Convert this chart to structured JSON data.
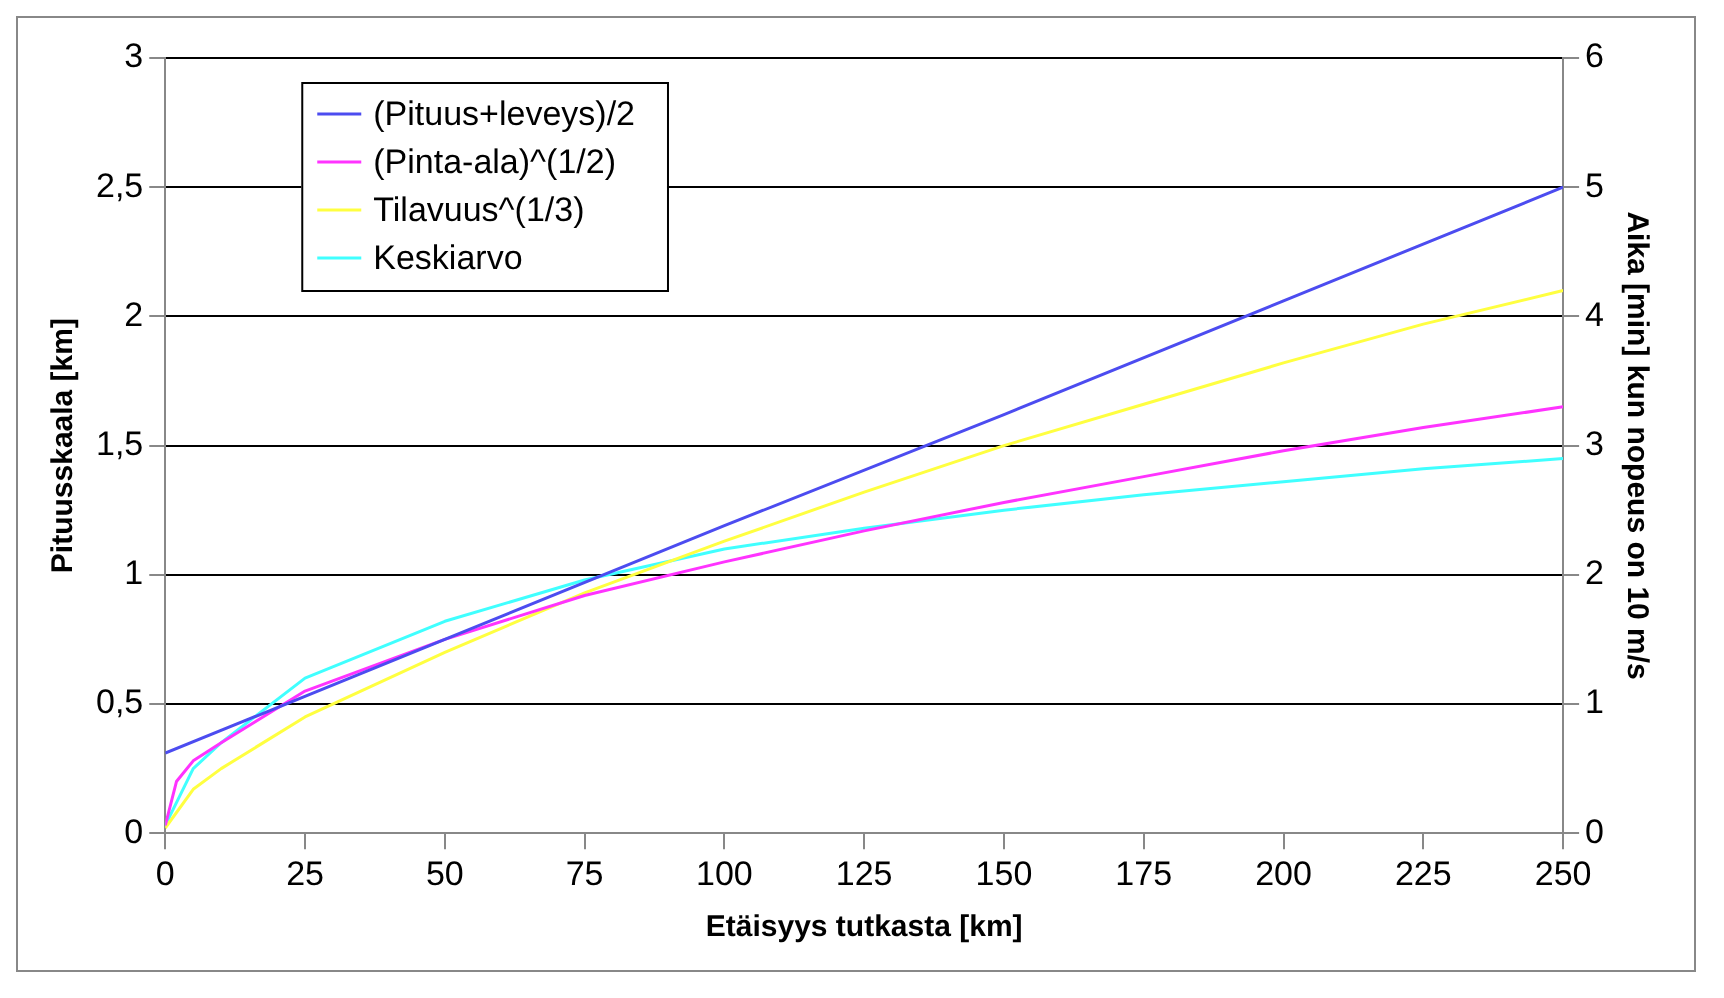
{
  "chart_data": {
    "type": "line",
    "xlabel": "Etäisyys tutkasta [km]",
    "ylabel": "Pituusskaala [km]",
    "y2label": "Aika [min] kun nopeus on 10 m/s",
    "xlim": [
      0,
      250
    ],
    "xticks": [
      0,
      25,
      50,
      75,
      100,
      125,
      150,
      175,
      200,
      225,
      250
    ],
    "ylim": [
      0,
      3
    ],
    "yticks": [
      0,
      {
        "value": 0.5,
        "label": "0,5"
      },
      1,
      {
        "value": 1.5,
        "label": "1,5"
      },
      2,
      {
        "value": 2.5,
        "label": "2,5"
      },
      3
    ],
    "y2lim": [
      0,
      6
    ],
    "y2ticks": [
      0,
      1,
      2,
      3,
      4,
      5,
      6
    ],
    "grid": "y",
    "legend": "top left",
    "marker": "none",
    "line_style": "solid",
    "series": [
      {
        "name": "(Pituus+leveys)/2",
        "color": "#4c4cf0",
        "x": [
          0,
          50,
          100,
          150,
          200,
          250
        ],
        "values": [
          0.31,
          0.75,
          1.19,
          1.62,
          2.06,
          2.5
        ]
      },
      {
        "name": "(Pinta-ala)^(1/2)",
        "color": "#ff33ff",
        "x": [
          0,
          2,
          5,
          10,
          25,
          50,
          75,
          100,
          125,
          150,
          175,
          200,
          225,
          250
        ],
        "values": [
          0.03,
          0.2,
          0.28,
          0.35,
          0.55,
          0.75,
          0.92,
          1.05,
          1.17,
          1.28,
          1.38,
          1.48,
          1.57,
          1.65
        ]
      },
      {
        "name": "Tilavuus^(1/3)",
        "color": "#ffff40",
        "x": [
          0,
          5,
          10,
          25,
          50,
          75,
          100,
          125,
          150,
          175,
          200,
          225,
          250
        ],
        "values": [
          0.02,
          0.17,
          0.25,
          0.45,
          0.7,
          0.93,
          1.13,
          1.32,
          1.5,
          1.66,
          1.82,
          1.97,
          2.1
        ]
      },
      {
        "name": "Keskiarvo",
        "color": "#40ffff",
        "x": [
          0,
          5,
          10,
          25,
          50,
          75,
          100,
          125,
          150,
          175,
          200,
          225,
          250
        ],
        "values": [
          0.03,
          0.25,
          0.35,
          0.6,
          0.82,
          0.98,
          1.1,
          1.18,
          1.25,
          1.31,
          1.36,
          1.41,
          1.45
        ]
      }
    ]
  }
}
